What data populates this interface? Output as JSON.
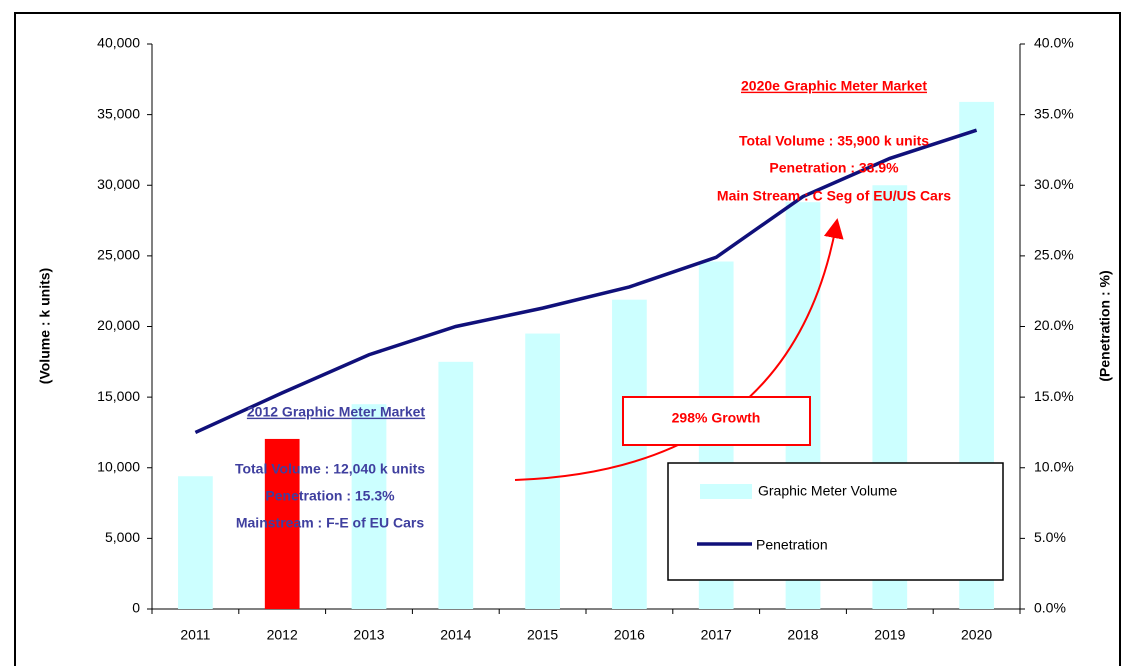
{
  "chart_data": {
    "type": "bar_line",
    "categories": [
      "2011",
      "2012",
      "2013",
      "2014",
      "2015",
      "2016",
      "2017",
      "2018",
      "2019",
      "2020"
    ],
    "series": [
      {
        "name": "Graphic Meter Volume",
        "color": "#ccffff",
        "colors": [
          "#ccffff",
          "#ff0000",
          "#ccffff",
          "#ccffff",
          "#ccffff",
          "#ccffff",
          "#ccffff",
          "#ccffff",
          "#ccffff",
          "#ccffff"
        ],
        "values": [
          9400,
          12040,
          14500,
          17500,
          19500,
          21900,
          24600,
          28800,
          30000,
          35900
        ]
      },
      {
        "name": "Penetration",
        "color": "#10107a",
        "axis": "y2",
        "values": [
          12.5,
          15.3,
          18.0,
          20.0,
          21.3,
          22.8,
          24.9,
          29.2,
          31.9,
          33.9
        ]
      }
    ],
    "y_label": "(Volume : k units)",
    "y2_label": "(Penetration : %)",
    "ylim": [
      0,
      40000
    ],
    "yticks": [
      0,
      {
        "value": 5000,
        "label": "5,000"
      },
      {
        "value": 10000,
        "label": "10,000"
      },
      {
        "value": 15000,
        "label": "15,000"
      },
      {
        "value": 20000,
        "label": "20,000"
      },
      {
        "value": 25000,
        "label": "25,000"
      },
      {
        "value": 30000,
        "label": "30,000"
      },
      {
        "value": 35000,
        "label": "35,000"
      },
      {
        "value": 40000,
        "label": "40,000"
      }
    ],
    "y2lim": [
      0,
      40
    ],
    "y2ticks": [
      {
        "value": 0,
        "label": "0.0%"
      },
      {
        "value": 5,
        "label": "5.0%"
      },
      {
        "value": 10,
        "label": "10.0%"
      },
      {
        "value": 15,
        "label": "15.0%"
      },
      {
        "value": 20,
        "label": "20.0%"
      },
      {
        "value": 25,
        "label": "25.0%"
      },
      {
        "value": 30,
        "label": "30.0%"
      },
      {
        "value": 35,
        "label": "35.0%"
      },
      {
        "value": 40,
        "label": "40.0%"
      }
    ],
    "annotations": [
      {
        "title": "2012 Graphic Meter Market",
        "color": "#3f3f9f",
        "lines": [
          "Total Volume : 12,040 k units",
          "Penetration : 15.3%",
          "Mainstream : F-E of EU Cars"
        ]
      },
      {
        "title": "2020e Graphic Meter Market",
        "color": "#ff0000",
        "lines": [
          "Total Volume : 35,900 k units",
          "Penetration : 33.9%",
          "Main Stream : C Seg of EU/US Cars"
        ]
      }
    ],
    "callout": "298% Growth",
    "legend": "lower right"
  }
}
